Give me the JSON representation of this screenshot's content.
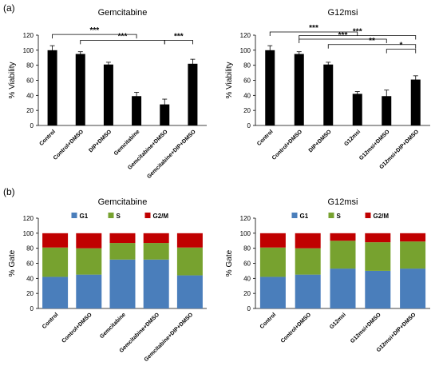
{
  "figure": {
    "panel_a_label": "(a)",
    "panel_b_label": "(b)"
  },
  "chart_data": [
    {
      "id": "a1",
      "type": "bar",
      "title": "Gemcitabine",
      "ylabel": "% Viability",
      "ylim": [
        0,
        120
      ],
      "yticks": [
        0,
        20,
        40,
        60,
        80,
        100,
        120
      ],
      "categories": [
        "Control",
        "Control+DMSO",
        "DIP+DMSO",
        "Gemcitabine",
        "Gemcitabine+DMSO",
        "Gemcitabine+DIP+DMSO"
      ],
      "values": [
        100,
        95,
        81,
        39,
        28,
        82
      ],
      "errors": [
        6,
        3,
        3,
        5,
        7,
        6
      ],
      "color": "#000000",
      "significance": [
        {
          "from": 0,
          "to": 3,
          "label": "***"
        },
        {
          "from": 1,
          "to": 4,
          "label": "***"
        },
        {
          "from": 4,
          "to": 5,
          "label": "***"
        }
      ]
    },
    {
      "id": "a2",
      "type": "bar",
      "title": "G12msi",
      "ylabel": "% Viability",
      "ylim": [
        0,
        120
      ],
      "yticks": [
        0,
        20,
        40,
        60,
        80,
        100,
        120
      ],
      "categories": [
        "Control",
        "Control+DMSO",
        "DIP+DMSO",
        "G12msi",
        "G12msi+DMSO",
        "G12msi+DIP+DMSO"
      ],
      "values": [
        100,
        95,
        81,
        42,
        39,
        61
      ],
      "errors": [
        6,
        3,
        3,
        3,
        8,
        5
      ],
      "color": "#000000",
      "significance": [
        {
          "from": 0,
          "to": 3,
          "label": "***"
        },
        {
          "from": 1,
          "to": 5,
          "label": "***"
        },
        {
          "from": 1,
          "to": 4,
          "label": "***"
        },
        {
          "from": 2,
          "to": 5,
          "label": "**"
        },
        {
          "from": 4,
          "to": 5,
          "label": "*"
        }
      ]
    },
    {
      "id": "b1",
      "type": "bar",
      "stacked": true,
      "title": "Gemcitabine",
      "ylabel": "% Gate",
      "ylim": [
        0,
        120
      ],
      "yticks": [
        0,
        20,
        40,
        60,
        80,
        100,
        120
      ],
      "categories": [
        "Control",
        "Control+DMSO",
        "Gemcitabine",
        "Gemcitabine+DMSO",
        "Gemcitabine+DIP+DMSO"
      ],
      "legend_position": "top",
      "series": [
        {
          "name": "G1",
          "color": "#4A7EBB",
          "values": [
            42,
            45,
            65,
            65,
            44
          ]
        },
        {
          "name": "S",
          "color": "#77A22F",
          "values": [
            39,
            35,
            22,
            22,
            37
          ]
        },
        {
          "name": "G2/M",
          "color": "#C00000",
          "values": [
            19,
            20,
            13,
            13,
            19
          ]
        }
      ]
    },
    {
      "id": "b2",
      "type": "bar",
      "stacked": true,
      "title": "G12msi",
      "ylabel": "% Gate",
      "ylim": [
        0,
        120
      ],
      "yticks": [
        0,
        20,
        40,
        60,
        80,
        100,
        120
      ],
      "categories": [
        "Control",
        "Control+DMSO",
        "G12msi",
        "G12msi+DMSO",
        "G12msi+DIP+DMSO"
      ],
      "legend_position": "top",
      "series": [
        {
          "name": "G1",
          "color": "#4A7EBB",
          "values": [
            42,
            45,
            53,
            50,
            53
          ]
        },
        {
          "name": "S",
          "color": "#77A22F",
          "values": [
            39,
            35,
            37,
            38,
            36
          ]
        },
        {
          "name": "G2/M",
          "color": "#C00000",
          "values": [
            19,
            20,
            10,
            12,
            11
          ]
        }
      ]
    }
  ]
}
